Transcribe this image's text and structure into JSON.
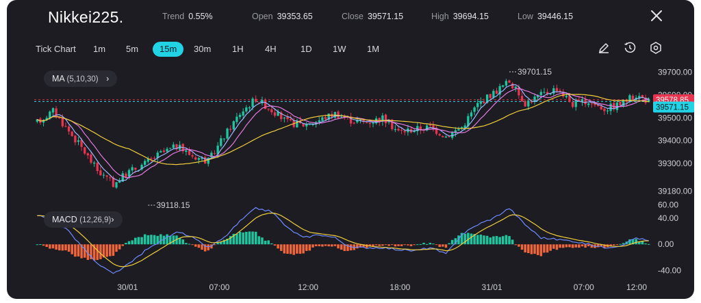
{
  "header": {
    "title": "Nikkei225.",
    "trend_label": "Trend",
    "trend_value": "0.55%",
    "open_label": "Open",
    "open_value": "39353.65",
    "close_label": "Close",
    "close_value": "39571.15",
    "high_label": "High",
    "high_value": "39694.15",
    "low_label": "Low",
    "low_value": "39446.15",
    "close_icon": "close-icon"
  },
  "toolbar": {
    "timeframes": [
      "Tick Chart",
      "1m",
      "5m",
      "15m",
      "30m",
      "1H",
      "4H",
      "1D",
      "1W",
      "1M"
    ],
    "active": "15m",
    "icons": [
      "pencil-icon",
      "timer-icon",
      "settings-hex-icon"
    ]
  },
  "indicators": {
    "ma_label": "MA",
    "ma_params": "(5,10,30)",
    "macd_label": "MACD",
    "macd_params": "(12,26,9)"
  },
  "colors": {
    "background": "#1c1c22",
    "up": "#1ec6a0",
    "down": "#e8344e",
    "ma5": "#9fb6ff",
    "ma10": "#e57be0",
    "ma30": "#f2cf3b",
    "macd_line": "#6f8cff",
    "signal_line": "#f2cf3b",
    "hist_pos": "#1ec6a0",
    "hist_neg": "#f0653a",
    "last_price_tag": "#e8344e",
    "close_tag": "#22d3e6"
  },
  "chart_data": [
    {
      "type": "candlestick",
      "title": "",
      "y_axis_ticks": [
        "39700.00",
        "39600.00",
        "39500.00",
        "39400.00",
        "39300.00",
        "39180.00"
      ],
      "ylim": [
        39130,
        39740
      ],
      "x_tick_labels": [
        "30/01",
        "07:00",
        "12:00",
        "18:00",
        "31/01",
        "07:00",
        "12:00"
      ],
      "annotations": {
        "max_label": "39701.15",
        "min_label": "39118.15",
        "last_price_tag": "39578.85",
        "close_tag": "39571.15"
      },
      "moving_averages": [
        "MA5",
        "MA10",
        "MA30"
      ],
      "anchors": [
        [
          0,
          39480
        ],
        [
          5,
          39530
        ],
        [
          9,
          39460
        ],
        [
          14,
          39370
        ],
        [
          19,
          39270
        ],
        [
          24,
          39210
        ],
        [
          29,
          39265
        ],
        [
          34,
          39300
        ],
        [
          39,
          39345
        ],
        [
          44,
          39375
        ],
        [
          49,
          39335
        ],
        [
          54,
          39310
        ],
        [
          59,
          39420
        ],
        [
          64,
          39520
        ],
        [
          69,
          39585
        ],
        [
          74,
          39535
        ],
        [
          79,
          39480
        ],
        [
          84,
          39470
        ],
        [
          89,
          39490
        ],
        [
          94,
          39520
        ],
        [
          99,
          39490
        ],
        [
          104,
          39480
        ],
        [
          109,
          39500
        ],
        [
          114,
          39440
        ],
        [
          119,
          39450
        ],
        [
          124,
          39460
        ],
        [
          129,
          39420
        ],
        [
          134,
          39460
        ],
        [
          139,
          39560
        ],
        [
          144,
          39610
        ],
        [
          149,
          39660
        ],
        [
          154,
          39565
        ],
        [
          159,
          39600
        ],
        [
          164,
          39630
        ],
        [
          169,
          39560
        ],
        [
          174,
          39570
        ],
        [
          179,
          39540
        ],
        [
          184,
          39560
        ],
        [
          189,
          39600
        ],
        [
          193,
          39572
        ]
      ]
    },
    {
      "type": "macd",
      "title": "MACD",
      "y_axis_ticks": [
        "60.00",
        "40.00",
        "0.00",
        "-40.00"
      ],
      "ylim": [
        -55,
        68
      ],
      "series": [
        "MACD",
        "Signal",
        "Histogram"
      ],
      "macd_anchors": [
        [
          0,
          45
        ],
        [
          9,
          25
        ],
        [
          19,
          -30
        ],
        [
          24,
          -45
        ],
        [
          29,
          -30
        ],
        [
          34,
          -10
        ],
        [
          39,
          5
        ],
        [
          44,
          20
        ],
        [
          49,
          10
        ],
        [
          54,
          -5
        ],
        [
          59,
          10
        ],
        [
          64,
          35
        ],
        [
          69,
          55
        ],
        [
          74,
          50
        ],
        [
          79,
          25
        ],
        [
          84,
          10
        ],
        [
          89,
          15
        ],
        [
          94,
          10
        ],
        [
          99,
          -5
        ],
        [
          109,
          -5
        ],
        [
          114,
          -8
        ],
        [
          119,
          -10
        ],
        [
          124,
          -5
        ],
        [
          129,
          -15
        ],
        [
          134,
          15
        ],
        [
          139,
          30
        ],
        [
          144,
          40
        ],
        [
          149,
          55
        ],
        [
          154,
          30
        ],
        [
          159,
          10
        ],
        [
          169,
          5
        ],
        [
          179,
          -5
        ],
        [
          184,
          -2
        ],
        [
          189,
          10
        ],
        [
          193,
          5
        ]
      ]
    }
  ]
}
